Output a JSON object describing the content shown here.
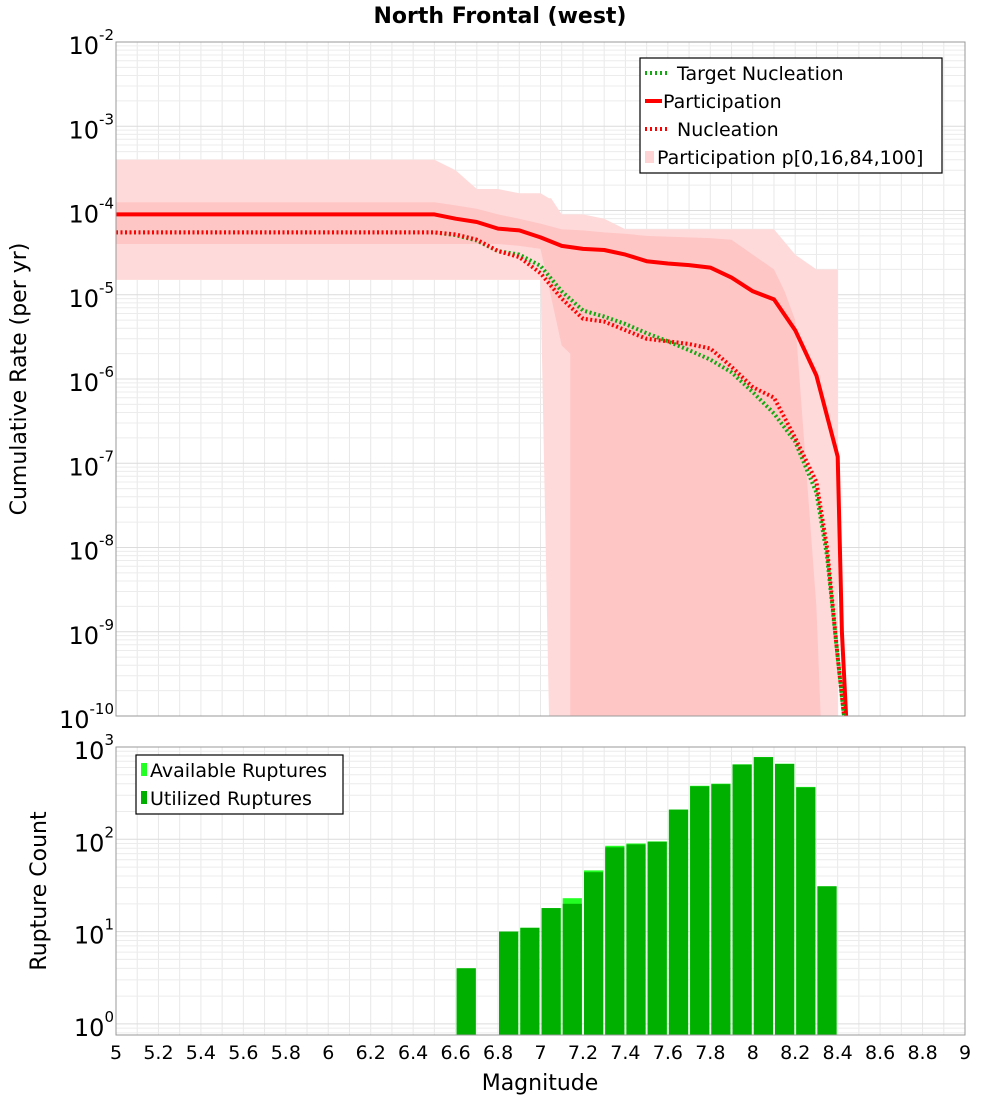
{
  "chart_data": [
    {
      "type": "line",
      "title": "North Frontal (west)",
      "xlabel": "",
      "ylabel": "Cumulative Rate (per yr)",
      "xlim": [
        5,
        9
      ],
      "ylim_log10": [
        -10,
        -2
      ],
      "y_ticks": [
        {
          "base": "10",
          "exp": "-2",
          "value": -2
        },
        {
          "base": "10",
          "exp": "-3",
          "value": -3
        },
        {
          "base": "10",
          "exp": "-4",
          "value": -4
        },
        {
          "base": "10",
          "exp": "-5",
          "value": -5
        },
        {
          "base": "10",
          "exp": "-6",
          "value": -6
        },
        {
          "base": "10",
          "exp": "-7",
          "value": -7
        },
        {
          "base": "10",
          "exp": "-8",
          "value": -8
        },
        {
          "base": "10",
          "exp": "-9",
          "value": -9
        },
        {
          "base": "10",
          "exp": "-10",
          "value": -10
        }
      ],
      "legend_position": "top-right",
      "legend": [
        {
          "label": "Target Nucleation",
          "style": "dotted",
          "color": "#11aa11"
        },
        {
          "label": "Participation",
          "style": "solid",
          "color": "#ff0000"
        },
        {
          "label": "Nucleation",
          "style": "dotted",
          "color": "#ff0000"
        },
        {
          "label": "Participation p[0,16,84,100]",
          "style": "band",
          "color": "#ffd4d4"
        }
      ],
      "series": [
        {
          "name": "Participation",
          "color": "#ff0000",
          "style": "solid",
          "x": [
            5.0,
            6.5,
            6.6,
            6.7,
            6.8,
            6.9,
            7.0,
            7.1,
            7.2,
            7.3,
            7.4,
            7.5,
            7.6,
            7.7,
            7.8,
            7.9,
            8.0,
            8.1,
            8.2,
            8.3,
            8.4,
            8.42,
            8.44
          ],
          "y": [
            9e-05,
            9e-05,
            8e-05,
            7.3e-05,
            6.1e-05,
            5.8e-05,
            4.8e-05,
            3.8e-05,
            3.5e-05,
            3.4e-05,
            3e-05,
            2.5e-05,
            2.35e-05,
            2.25e-05,
            2.1e-05,
            1.6e-05,
            1.1e-05,
            8.8e-06,
            3.8e-06,
            1.1e-06,
            1.2e-07,
            1e-09,
            1e-10
          ]
        },
        {
          "name": "Nucleation",
          "color": "#ff0000",
          "style": "dotted",
          "x": [
            5.0,
            6.5,
            6.6,
            6.7,
            6.8,
            6.9,
            7.0,
            7.1,
            7.2,
            7.3,
            7.4,
            7.5,
            7.6,
            7.7,
            7.8,
            7.9,
            8.0,
            8.1,
            8.2,
            8.3,
            8.35,
            8.4,
            8.43
          ],
          "y": [
            5.5e-05,
            5.5e-05,
            5.2e-05,
            4.5e-05,
            3.3e-05,
            2.8e-05,
            1.8e-05,
            9e-06,
            5.2e-06,
            4.8e-06,
            3.8e-06,
            3e-06,
            2.8e-06,
            2.6e-06,
            2.3e-06,
            1.4e-06,
            8e-07,
            6e-07,
            2e-07,
            6e-08,
            1e-08,
            5e-10,
            1e-10
          ]
        },
        {
          "name": "Target Nucleation",
          "color": "#11aa11",
          "style": "dotted",
          "x": [
            5.0,
            6.5,
            6.6,
            6.7,
            6.8,
            6.9,
            7.0,
            7.1,
            7.2,
            7.3,
            7.4,
            7.5,
            7.6,
            7.7,
            7.8,
            7.9,
            8.0,
            8.1,
            8.2,
            8.3,
            8.35,
            8.4,
            8.43
          ],
          "y": [
            5.5e-05,
            5.5e-05,
            5.1e-05,
            4.4e-05,
            3.3e-05,
            3e-05,
            2.2e-05,
            1.1e-05,
            6.5e-06,
            5.5e-06,
            4.5e-06,
            3.5e-06,
            2.8e-06,
            2.2e-06,
            1.7e-06,
            1.2e-06,
            7e-07,
            3.9e-07,
            1.8e-07,
            4.5e-08,
            8e-09,
            5e-10,
            1e-10
          ]
        }
      ],
      "bands": [
        {
          "name": "p0-p100",
          "color": "#ffdada",
          "x": [
            5.0,
            6.5,
            6.6,
            6.7,
            6.8,
            6.9,
            6.95,
            7.0,
            7.04,
            7.05,
            7.1,
            7.2,
            7.3,
            7.4,
            7.5,
            7.6,
            7.7,
            7.8,
            7.9,
            8.0,
            8.1,
            8.2,
            8.3,
            8.4,
            8.4,
            8.4,
            8.3,
            8.2,
            8.1,
            8.0,
            7.9,
            7.8,
            7.7,
            7.6,
            7.5,
            7.4,
            7.3,
            7.2,
            7.1,
            7.05,
            7.04,
            7.0,
            6.9,
            6.8,
            6.7,
            6.6,
            6.5,
            5.0
          ],
          "y": [
            0.0004,
            0.0004,
            0.0003,
            0.00018,
            0.00018,
            0.00016,
            0.00016,
            0.00016,
            0.00014,
            0.00014,
            9e-05,
            9e-05,
            8e-05,
            6e-05,
            6e-05,
            6e-05,
            6e-05,
            6e-05,
            6e-05,
            6e-05,
            6e-05,
            3e-05,
            2e-05,
            2e-05,
            1e-10,
            1e-10,
            1e-10,
            1e-10,
            1e-10,
            1e-10,
            1e-10,
            1e-10,
            1e-10,
            1e-10,
            1e-10,
            1e-10,
            1e-10,
            1e-10,
            1e-10,
            1e-10,
            1e-10,
            1.5e-05,
            1.5e-05,
            1.5e-05,
            1.5e-05,
            1.5e-05,
            1.5e-05,
            1.5e-05
          ]
        },
        {
          "name": "p16-p84",
          "color": "#ffc6c6",
          "x": [
            5.0,
            6.5,
            6.6,
            6.7,
            6.8,
            6.9,
            7.0,
            7.1,
            7.2,
            7.3,
            7.4,
            7.5,
            7.6,
            7.7,
            7.8,
            7.9,
            8.0,
            8.1,
            8.15,
            8.2,
            8.25,
            8.3,
            8.32,
            8.32,
            8.3,
            8.2,
            8.1,
            8.0,
            7.9,
            7.8,
            7.7,
            7.6,
            7.5,
            7.4,
            7.3,
            7.2,
            7.14,
            7.14,
            7.1,
            7.0,
            6.9,
            6.8,
            6.7,
            6.6,
            6.5,
            5.0
          ],
          "y": [
            0.000125,
            0.000125,
            0.000115,
            0.000105,
            9e-05,
            8e-05,
            7e-05,
            6e-05,
            5.8e-05,
            5.5e-05,
            5.3e-05,
            5e-05,
            4.9e-05,
            4.8e-05,
            4.7e-05,
            4.5e-05,
            3e-05,
            2e-05,
            1.1e-05,
            5e-06,
            1e-07,
            2e-09,
            1e-10,
            1e-10,
            1e-10,
            1e-10,
            1e-10,
            1e-10,
            1e-10,
            1e-10,
            1e-10,
            1e-10,
            1e-10,
            1e-10,
            1e-10,
            1e-10,
            1e-10,
            2e-06,
            2.5e-06,
            3.5e-05,
            3.8e-05,
            4e-05,
            4e-05,
            4e-05,
            4e-05,
            4e-05
          ]
        }
      ]
    },
    {
      "type": "bar",
      "title": "",
      "xlabel": "Magnitude",
      "ylabel": "Rupture Count",
      "xlim": [
        5,
        9
      ],
      "ylim_log10": [
        -0.12,
        3
      ],
      "x_ticks": [
        "5",
        "5.2",
        "5.4",
        "5.6",
        "5.8",
        "6",
        "6.2",
        "6.4",
        "6.6",
        "6.8",
        "7",
        "7.2",
        "7.4",
        "7.6",
        "7.8",
        "8",
        "8.2",
        "8.4",
        "8.6",
        "8.8",
        "9"
      ],
      "y_ticks": [
        {
          "base": "10",
          "exp": "3",
          "value": 3
        },
        {
          "base": "10",
          "exp": "2",
          "value": 2
        },
        {
          "base": "10",
          "exp": "1",
          "value": 1
        },
        {
          "base": "10",
          "exp": "0",
          "value": 0
        }
      ],
      "legend_position": "top-left",
      "legend": [
        {
          "label": "Available Ruptures",
          "color": "#22ff22"
        },
        {
          "label": "Utilized Ruptures",
          "color": "#00b000"
        }
      ],
      "bin_width": 0.1,
      "centers": [
        6.65,
        6.85,
        6.95,
        7.05,
        7.15,
        7.25,
        7.35,
        7.45,
        7.55,
        7.65,
        7.75,
        7.85,
        7.95,
        8.05,
        8.15,
        8.25,
        8.35
      ],
      "series": [
        {
          "name": "Available Ruptures",
          "color": "#22ff22",
          "values": [
            4,
            10,
            11,
            18,
            23,
            46,
            85,
            90,
            95,
            210,
            380,
            400,
            650,
            780,
            660,
            370,
            31
          ]
        },
        {
          "name": "Utilized Ruptures",
          "color": "#00b000",
          "values": [
            4,
            10,
            11,
            18,
            20,
            44,
            82,
            88,
            94,
            210,
            375,
            395,
            645,
            775,
            655,
            365,
            31
          ]
        }
      ]
    }
  ]
}
